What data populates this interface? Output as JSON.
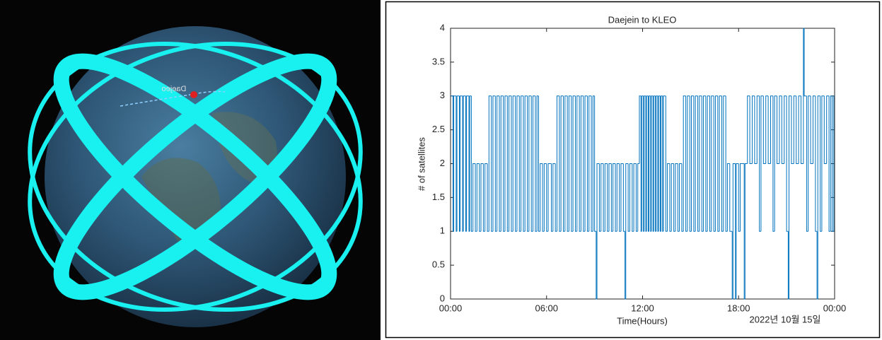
{
  "globe": {
    "label": "Daejeo"
  },
  "chart_data": {
    "type": "step",
    "title": "Daejein to KLEO",
    "x_label": "Time(Hours)",
    "y_label": "# of satellites",
    "date_label": "2022년 10월 15일",
    "color": "#0072bd",
    "xlim": [
      0,
      24
    ],
    "xticks": [
      {
        "value": 0,
        "label": "00:00"
      },
      {
        "value": 6,
        "label": "06:00"
      },
      {
        "value": 12,
        "label": "12:00"
      },
      {
        "value": 18,
        "label": "18:00"
      },
      {
        "value": 24,
        "label": "00:00"
      }
    ],
    "ylim": [
      0,
      4
    ],
    "yticks": [
      0,
      0.5,
      1,
      1.5,
      2,
      2.5,
      3,
      3.5,
      4
    ],
    "x": [
      0,
      0.15,
      0.2,
      0.35,
      0.4,
      0.55,
      0.6,
      0.75,
      0.8,
      0.95,
      1.0,
      1.15,
      1.2,
      1.3,
      1.4,
      1.55,
      1.65,
      1.8,
      1.9,
      2.05,
      2.15,
      2.3,
      2.4,
      2.55,
      2.65,
      2.8,
      2.9,
      3.05,
      3.15,
      3.3,
      3.4,
      3.55,
      3.65,
      3.8,
      3.9,
      4.05,
      4.15,
      4.3,
      4.4,
      4.55,
      4.65,
      4.8,
      4.9,
      5.05,
      5.15,
      5.3,
      5.4,
      5.5,
      5.6,
      5.75,
      5.85,
      6.0,
      6.1,
      6.3,
      6.4,
      6.55,
      6.65,
      6.8,
      6.9,
      7.05,
      7.15,
      7.3,
      7.4,
      7.55,
      7.65,
      7.8,
      7.9,
      8.05,
      8.15,
      8.3,
      8.4,
      8.55,
      8.65,
      8.8,
      8.9,
      9.0,
      9.1,
      9.15,
      9.3,
      9.4,
      9.55,
      9.65,
      9.8,
      9.9,
      10.05,
      10.15,
      10.3,
      10.4,
      10.55,
      10.65,
      10.8,
      10.9,
      10.95,
      11.1,
      11.2,
      11.35,
      11.45,
      11.6,
      11.7,
      11.8,
      11.9,
      11.95,
      12.05,
      12.1,
      12.2,
      12.25,
      12.35,
      12.4,
      12.5,
      12.55,
      12.65,
      12.7,
      12.8,
      12.85,
      12.95,
      13.0,
      13.1,
      13.15,
      13.25,
      13.3,
      13.45,
      13.55,
      13.7,
      13.8,
      13.95,
      14.05,
      14.2,
      14.3,
      14.45,
      14.55,
      14.7,
      14.8,
      14.95,
      15.05,
      15.2,
      15.3,
      15.45,
      15.55,
      15.7,
      15.8,
      15.95,
      16.05,
      16.2,
      16.3,
      16.45,
      16.55,
      16.7,
      16.8,
      16.95,
      17.05,
      17.2,
      17.3,
      17.45,
      17.6,
      17.65,
      17.8,
      17.85,
      18.0,
      18.1,
      18.35,
      18.4,
      18.55,
      18.7,
      18.85,
      19.0,
      19.15,
      19.3,
      19.4,
      19.55,
      19.7,
      19.85,
      20.0,
      20.15,
      20.25,
      20.4,
      20.55,
      20.7,
      20.85,
      21.0,
      21.1,
      21.15,
      21.3,
      21.45,
      21.6,
      21.75,
      21.9,
      22.05,
      22.1,
      22.25,
      22.35,
      22.5,
      22.65,
      22.8,
      22.9,
      22.95,
      23.1,
      23.2,
      23.35,
      23.5,
      23.65,
      23.75,
      23.85,
      23.95
    ],
    "values": [
      3,
      1,
      3,
      1,
      3,
      1,
      3,
      1,
      3,
      1,
      3,
      1,
      3,
      1,
      2,
      1,
      2,
      1,
      2,
      1,
      2,
      1,
      3,
      1,
      3,
      1,
      3,
      1,
      3,
      1,
      3,
      1,
      3,
      1,
      3,
      1,
      3,
      1,
      3,
      1,
      3,
      1,
      3,
      1,
      3,
      1,
      3,
      1,
      2,
      1,
      2,
      1,
      2,
      1,
      2,
      1,
      3,
      1,
      3,
      1,
      3,
      1,
      3,
      1,
      3,
      1,
      3,
      1,
      3,
      1,
      3,
      1,
      3,
      1,
      3,
      1,
      0,
      2,
      1,
      2,
      1,
      2,
      1,
      2,
      1,
      2,
      1,
      2,
      1,
      2,
      1,
      0,
      2,
      1,
      2,
      1,
      2,
      1,
      2,
      3,
      1,
      3,
      1,
      3,
      1,
      3,
      1,
      3,
      1,
      3,
      1,
      3,
      1,
      3,
      1,
      3,
      1,
      3,
      1,
      3,
      1,
      2,
      1,
      2,
      1,
      2,
      1,
      2,
      1,
      3,
      1,
      3,
      1,
      3,
      1,
      3,
      1,
      3,
      1,
      3,
      1,
      3,
      1,
      3,
      1,
      3,
      1,
      3,
      1,
      3,
      1,
      2,
      1,
      0,
      2,
      0,
      2,
      1,
      2,
      0,
      2,
      3,
      2,
      3,
      2,
      3,
      1,
      3,
      2,
      3,
      2,
      3,
      1,
      3,
      2,
      3,
      2,
      3,
      1,
      0,
      3,
      2,
      3,
      2,
      3,
      2,
      4,
      3,
      1,
      3,
      2,
      3,
      1,
      0,
      3,
      1,
      3,
      2,
      3,
      1,
      3,
      1,
      3
    ]
  }
}
